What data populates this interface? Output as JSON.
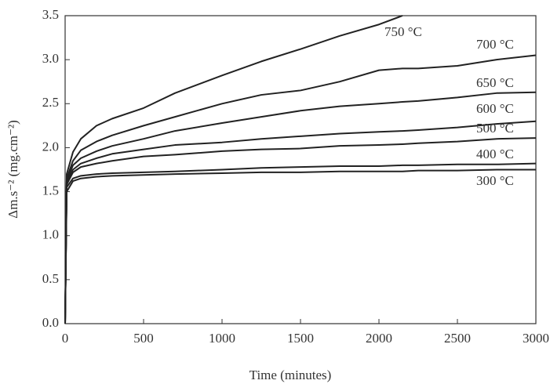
{
  "chart_data": {
    "type": "line",
    "xlabel": "Time (minutes)",
    "ylabel": "Δm.s⁻² (mg.cm⁻²)",
    "x": [
      0,
      10,
      50,
      100,
      200,
      300,
      500,
      700,
      1000,
      1250,
      1500,
      1750,
      2000,
      2150,
      2250,
      2500,
      2750,
      3000
    ],
    "series": [
      {
        "name": "750 °C",
        "color": "#222222",
        "values": [
          0,
          1.7,
          1.95,
          2.1,
          2.25,
          2.33,
          2.45,
          2.62,
          2.82,
          2.98,
          3.12,
          3.27,
          3.4,
          3.5,
          null,
          null,
          null,
          null
        ]
      },
      {
        "name": "700 °C",
        "color": "#222222",
        "values": [
          0,
          1.65,
          1.85,
          1.97,
          2.07,
          2.14,
          2.25,
          2.35,
          2.5,
          2.6,
          2.65,
          2.75,
          2.88,
          2.9,
          2.9,
          2.93,
          3.0,
          3.05
        ]
      },
      {
        "name": "650 °C",
        "color": "#222222",
        "values": [
          0,
          1.62,
          1.8,
          1.88,
          1.96,
          2.02,
          2.1,
          2.19,
          2.28,
          2.35,
          2.42,
          2.47,
          2.5,
          2.52,
          2.53,
          2.57,
          2.62,
          2.63
        ]
      },
      {
        "name": "600 °C",
        "color": "#222222",
        "values": [
          0,
          1.6,
          1.75,
          1.82,
          1.88,
          1.93,
          1.98,
          2.03,
          2.06,
          2.1,
          2.13,
          2.16,
          2.18,
          2.19,
          2.2,
          2.23,
          2.27,
          2.3
        ]
      },
      {
        "name": "500 °C",
        "color": "#222222",
        "values": [
          0,
          1.58,
          1.72,
          1.78,
          1.82,
          1.85,
          1.9,
          1.92,
          1.96,
          1.98,
          1.99,
          2.02,
          2.03,
          2.04,
          2.05,
          2.07,
          2.1,
          2.11
        ]
      },
      {
        "name": "400 °C",
        "color": "#222222",
        "values": [
          0,
          1.55,
          1.65,
          1.68,
          1.7,
          1.71,
          1.72,
          1.73,
          1.75,
          1.77,
          1.78,
          1.79,
          1.79,
          1.8,
          1.8,
          1.81,
          1.81,
          1.82
        ]
      },
      {
        "name": "300 °C",
        "color": "#222222",
        "values": [
          0,
          1.5,
          1.62,
          1.65,
          1.67,
          1.68,
          1.69,
          1.7,
          1.71,
          1.72,
          1.72,
          1.73,
          1.73,
          1.73,
          1.74,
          1.74,
          1.75,
          1.75
        ]
      }
    ],
    "xlim": [
      0,
      3000
    ],
    "xticks": [
      0,
      500,
      1000,
      1500,
      2000,
      2500,
      3000
    ],
    "ylim": [
      0,
      3.5
    ],
    "yticks": [
      {
        "value": 0,
        "label": "0.0"
      },
      0.5,
      {
        "value": 1,
        "label": "1.0"
      },
      1.5,
      {
        "value": 2,
        "label": "2.0"
      },
      2.5,
      {
        "value": 3,
        "label": "3.0"
      },
      3.5
    ],
    "grid": false
  }
}
